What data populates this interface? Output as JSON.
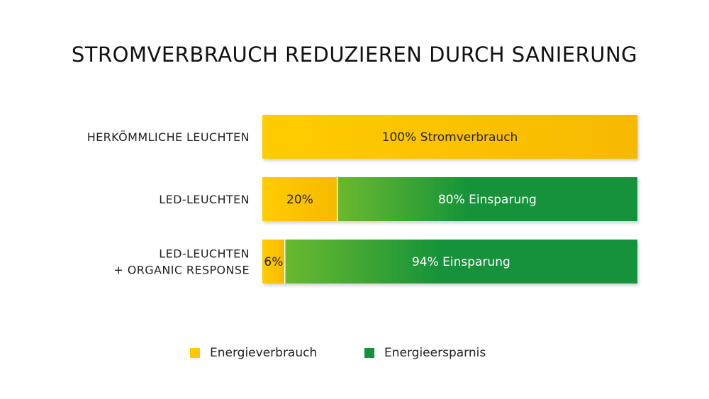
{
  "title": "STROMVERBRAUCH REDUZIEREN DURCH SANIERUNG",
  "colors": {
    "consumption_light": "#ffcc00",
    "consumption_dark": "#f7b900",
    "saving_light": "#6ab92e",
    "saving_dark": "#14923a",
    "text": "#222222",
    "saving_text": "#ffffff"
  },
  "legend": [
    {
      "label": "Energieverbrauch",
      "color": "#ffc800",
      "icon": "square-swatch"
    },
    {
      "label": "Energieersparnis",
      "color": "#14923a",
      "icon": "square-swatch"
    }
  ],
  "chart_data": {
    "type": "bar",
    "orientation": "horizontal",
    "stacked": true,
    "title": "STROMVERBRAUCH REDUZIEREN DURCH SANIERUNG",
    "categories": [
      [
        "HERKÖMMLICHE LEUCHTEN"
      ],
      [
        "LED-LEUCHTEN"
      ],
      [
        "LED-LEUCHTEN",
        "+ ORGANIC RESPONSE"
      ]
    ],
    "series": [
      {
        "name": "Energieverbrauch",
        "values": [
          100,
          20,
          6
        ],
        "labels": [
          "100% Stromverbrauch",
          "20%",
          "6%"
        ]
      },
      {
        "name": "Energieersparnis",
        "values": [
          0,
          80,
          94
        ],
        "labels": [
          "",
          "80% Einsparung",
          "94% Einsparung"
        ]
      }
    ],
    "xlim": [
      0,
      100
    ],
    "grid": false,
    "legend_position": "bottom"
  }
}
